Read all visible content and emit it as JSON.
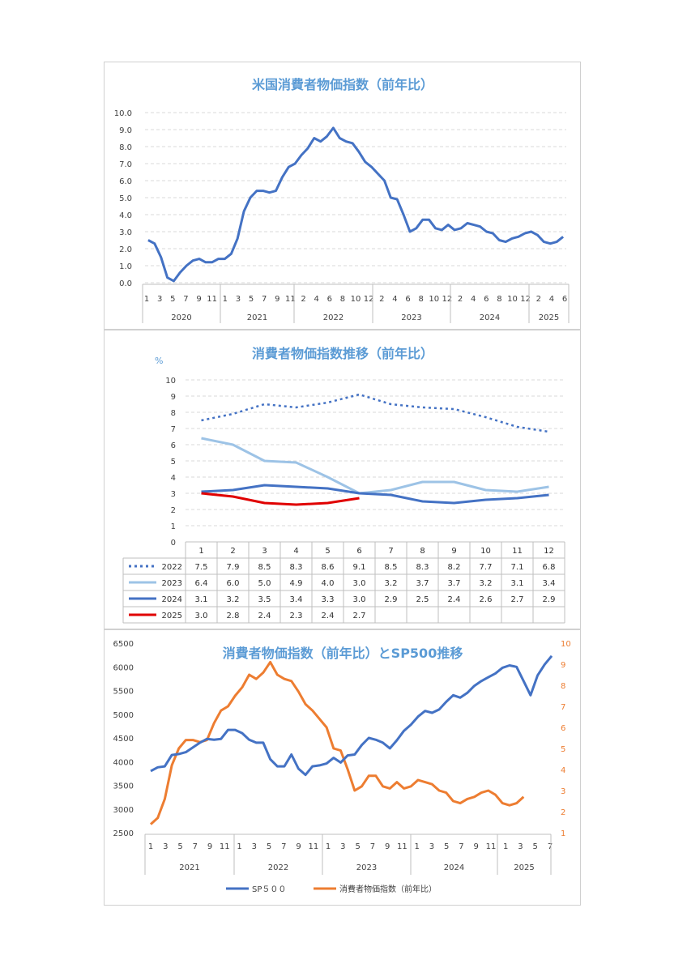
{
  "charts": [
    {
      "type": "line",
      "title": "米国消費者物価指数（前年比）",
      "ylim": [
        0,
        10
      ],
      "y_ticks": [
        "0.0",
        "1.0",
        "2.0",
        "3.0",
        "4.0",
        "5.0",
        "6.0",
        "7.0",
        "8.0",
        "9.0",
        "10.0"
      ],
      "x_month_labels": [
        "1",
        "3",
        "5",
        "7",
        "9",
        "11",
        "1",
        "3",
        "5",
        "7",
        "9",
        "11",
        "2",
        "4",
        "6",
        "8",
        "10",
        "12",
        "2",
        "4",
        "6",
        "8",
        "10",
        "12",
        "2",
        "4",
        "6",
        "8",
        "10",
        "12",
        "2",
        "4",
        "6"
      ],
      "x_year_labels": [
        "2020",
        "2021",
        "2022",
        "2023",
        "2024",
        "2025"
      ],
      "series": [
        {
          "color": "#4472c4",
          "values": [
            2.5,
            2.3,
            1.5,
            0.3,
            0.1,
            0.6,
            1.0,
            1.3,
            1.4,
            1.2,
            1.2,
            1.4,
            1.4,
            1.7,
            2.6,
            4.2,
            5.0,
            5.4,
            5.4,
            5.3,
            5.4,
            6.2,
            6.8,
            7.0,
            7.5,
            7.9,
            8.5,
            8.3,
            8.6,
            9.1,
            8.5,
            8.3,
            8.2,
            7.7,
            7.1,
            6.8,
            6.4,
            6.0,
            5.0,
            4.9,
            4.0,
            3.0,
            3.2,
            3.7,
            3.7,
            3.2,
            3.1,
            3.4,
            3.1,
            3.2,
            3.5,
            3.4,
            3.3,
            3.0,
            2.9,
            2.5,
            2.4,
            2.6,
            2.7,
            2.9,
            3.0,
            2.8,
            2.4,
            2.3,
            2.4,
            2.7
          ]
        }
      ],
      "grid": true
    },
    {
      "type": "line",
      "title": "消費者物価指数推移（前年比）",
      "ylabel": "%",
      "ylim": [
        0,
        10
      ],
      "y_ticks": [
        "0",
        "1",
        "2",
        "3",
        "4",
        "5",
        "6",
        "7",
        "8",
        "9",
        "10"
      ],
      "categories": [
        "1",
        "2",
        "3",
        "4",
        "5",
        "6",
        "7",
        "8",
        "9",
        "10",
        "11",
        "12"
      ],
      "series": [
        {
          "name": "2022",
          "color": "#4472c4",
          "style": "dotted",
          "values": [
            "7.5",
            "7.9",
            "8.5",
            "8.3",
            "8.6",
            "9.1",
            "8.5",
            "8.3",
            "8.2",
            "7.7",
            "7.1",
            "6.8"
          ]
        },
        {
          "name": "2023",
          "color": "#9dc3e6",
          "style": "solid",
          "values": [
            "6.4",
            "6.0",
            "5.0",
            "4.9",
            "4.0",
            "3.0",
            "3.2",
            "3.7",
            "3.7",
            "3.2",
            "3.1",
            "3.4"
          ]
        },
        {
          "name": "2024",
          "color": "#4472c4",
          "style": "solid",
          "values": [
            "3.1",
            "3.2",
            "3.5",
            "3.4",
            "3.3",
            "3.0",
            "2.9",
            "2.5",
            "2.4",
            "2.6",
            "2.7",
            "2.9"
          ]
        },
        {
          "name": "2025",
          "color": "#e00000",
          "style": "solid",
          "values": [
            "3.0",
            "2.8",
            "2.4",
            "2.3",
            "2.4",
            "2.7"
          ]
        }
      ],
      "grid": true,
      "data_table": true
    },
    {
      "type": "line",
      "title": "消費者物価指数（前年比）とSP500推移",
      "y_left_lim": [
        2500,
        6500
      ],
      "y_left_ticks": [
        "2500",
        "3000",
        "3500",
        "4000",
        "4500",
        "5000",
        "5500",
        "6000",
        "6500"
      ],
      "y_right_lim": [
        1,
        10
      ],
      "y_right_ticks": [
        "1",
        "2",
        "3",
        "4",
        "5",
        "6",
        "7",
        "8",
        "9",
        "10"
      ],
      "x_month_labels": [
        "1",
        "3",
        "5",
        "7",
        "9",
        "11",
        "1",
        "3",
        "5",
        "7",
        "9",
        "11",
        "1",
        "3",
        "5",
        "7",
        "9",
        "11",
        "1",
        "3",
        "5",
        "7",
        "9",
        "11",
        "1",
        "3",
        "5",
        "7"
      ],
      "x_year_labels": [
        "2021",
        "2022",
        "2023",
        "2024",
        "2025"
      ],
      "legend_position": "bottom",
      "series": [
        {
          "name": "SP５００",
          "color": "#4472c4",
          "axis": "left",
          "values": [
            3800,
            3880,
            3900,
            4140,
            4160,
            4200,
            4300,
            4400,
            4480,
            4460,
            4480,
            4670,
            4670,
            4600,
            4460,
            4400,
            4400,
            4050,
            3900,
            3900,
            4150,
            3850,
            3720,
            3900,
            3920,
            3960,
            4080,
            3980,
            4130,
            4150,
            4350,
            4500,
            4460,
            4400,
            4280,
            4450,
            4650,
            4780,
            4950,
            5070,
            5030,
            5100,
            5260,
            5400,
            5350,
            5450,
            5600,
            5700,
            5780,
            5860,
            5980,
            6030,
            6000,
            5700,
            5400,
            5820,
            6050,
            6230
          ]
        },
        {
          "name": "消費者物価指数（前年比）",
          "color": "#ed7d31",
          "axis": "right",
          "values": [
            1.4,
            1.7,
            2.6,
            4.2,
            5.0,
            5.4,
            5.4,
            5.3,
            5.4,
            6.2,
            6.8,
            7.0,
            7.5,
            7.9,
            8.5,
            8.3,
            8.6,
            9.1,
            8.5,
            8.3,
            8.2,
            7.7,
            7.1,
            6.8,
            6.4,
            6.0,
            5.0,
            4.9,
            4.0,
            3.0,
            3.2,
            3.7,
            3.7,
            3.2,
            3.1,
            3.4,
            3.1,
            3.2,
            3.5,
            3.4,
            3.3,
            3.0,
            2.9,
            2.5,
            2.4,
            2.6,
            2.7,
            2.9,
            3.0,
            2.8,
            2.4,
            2.3,
            2.4,
            2.7
          ]
        }
      ]
    }
  ]
}
